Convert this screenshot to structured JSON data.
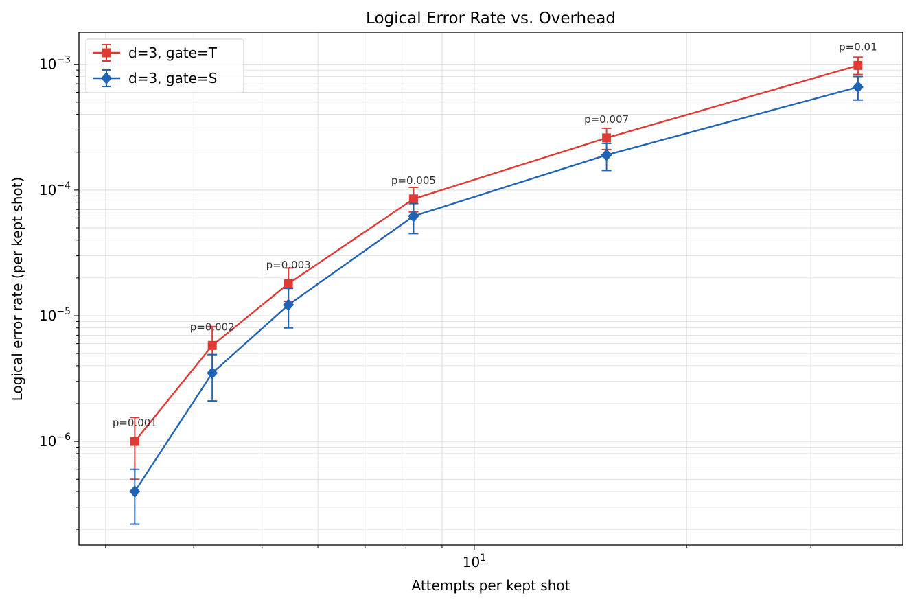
{
  "chart_data": {
    "type": "line",
    "title": "Logical Error Rate vs. Overhead",
    "xlabel": "Attempts per kept shot",
    "ylabel": "Logical error rate (per kept shot)",
    "xscale": "log",
    "yscale": "log",
    "xlim": [
      2.75,
      40.5
    ],
    "ylim": [
      1.5e-07,
      0.0018
    ],
    "x_ticks": [
      {
        "value": 10,
        "base": "10",
        "exp": "1"
      }
    ],
    "y_ticks": [
      {
        "value": 1e-06,
        "base": "10",
        "exp": "−6"
      },
      {
        "value": 1e-05,
        "base": "10",
        "exp": "−5"
      },
      {
        "value": 0.0001,
        "base": "10",
        "exp": "−4"
      },
      {
        "value": 0.001,
        "base": "10",
        "exp": "−3"
      }
    ],
    "grid": true,
    "legend_position": "top-left",
    "series": [
      {
        "name": "d=3, gate=T",
        "color": "#e03a35",
        "marker": "square",
        "points": [
          {
            "x": 3.3,
            "y": 1e-06,
            "lo": 5e-07,
            "hi": 1.55e-06
          },
          {
            "x": 4.25,
            "y": 5.8e-06,
            "lo": 3.5e-06,
            "hi": 8.2e-06
          },
          {
            "x": 5.45,
            "y": 1.8e-05,
            "lo": 1.3e-05,
            "hi": 2.4e-05
          },
          {
            "x": 8.2,
            "y": 8.5e-05,
            "lo": 6.7e-05,
            "hi": 0.000105
          },
          {
            "x": 15.4,
            "y": 0.00026,
            "lo": 0.00021,
            "hi": 0.00031
          },
          {
            "x": 35.0,
            "y": 0.00098,
            "lo": 0.00083,
            "hi": 0.00114
          }
        ]
      },
      {
        "name": "d=3, gate=S",
        "color": "#1f63b5",
        "marker": "diamond",
        "points": [
          {
            "x": 3.3,
            "y": 4e-07,
            "lo": 2.2e-07,
            "hi": 6e-07
          },
          {
            "x": 4.25,
            "y": 3.5e-06,
            "lo": 2.1e-06,
            "hi": 4.9e-06
          },
          {
            "x": 5.45,
            "y": 1.22e-05,
            "lo": 8e-06,
            "hi": 1.65e-05
          },
          {
            "x": 8.2,
            "y": 6.2e-05,
            "lo": 4.5e-05,
            "hi": 7.8e-05
          },
          {
            "x": 15.4,
            "y": 0.00019,
            "lo": 0.000143,
            "hi": 0.000235
          },
          {
            "x": 35.0,
            "y": 0.00066,
            "lo": 0.00052,
            "hi": 0.0008
          }
        ]
      }
    ],
    "annotations": [
      {
        "text": "p=0.001",
        "x": 3.3,
        "y": 1e-06
      },
      {
        "text": "p=0.002",
        "x": 4.25,
        "y": 5.8e-06
      },
      {
        "text": "p=0.003",
        "x": 5.45,
        "y": 1.8e-05
      },
      {
        "text": "p=0.005",
        "x": 8.2,
        "y": 8.5e-05
      },
      {
        "text": "p=0.007",
        "x": 15.4,
        "y": 0.00026
      },
      {
        "text": "p=0.01",
        "x": 35.0,
        "y": 0.00098
      }
    ]
  }
}
